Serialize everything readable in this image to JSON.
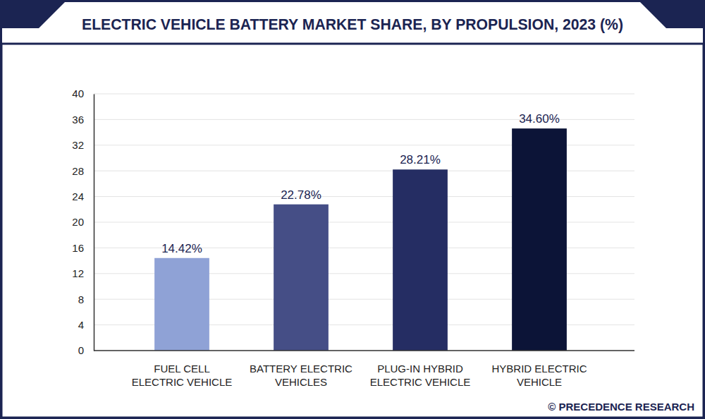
{
  "chart_data": {
    "type": "bar",
    "title": "ELECTRIC VEHICLE BATTERY MARKET SHARE, BY PROPULSION, 2023 (%)",
    "source": "© PRECEDENCE RESEARCH",
    "categories": [
      "FUEL CELL\nELECTRIC VEHICLE",
      "BATTERY ELECTRIC\nVEHICLES",
      "PLUG-IN HYBRID\nELECTRIC VEHICLE",
      "HYBRID ELECTRIC\nVEHICLE"
    ],
    "values": [
      14.42,
      22.78,
      28.21,
      34.6
    ],
    "value_labels": [
      "14.42%",
      "22.78%",
      "28.21%",
      "34.60%"
    ],
    "colors": [
      "#8fa2d6",
      "#454e86",
      "#252d63",
      "#0c1437"
    ],
    "ylim": [
      0,
      40
    ],
    "yticks": [
      0,
      4,
      8,
      12,
      16,
      20,
      24,
      28,
      32,
      36,
      40
    ],
    "grid": true,
    "data_labels": true
  }
}
